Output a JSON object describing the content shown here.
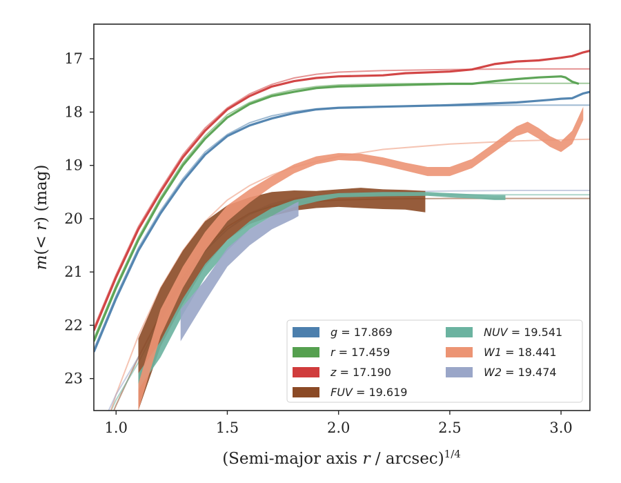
{
  "chart_data": {
    "type": "line",
    "xlabel": "(Semi-major axis r / arcsec)^1/4",
    "ylabel": "m(< r) (mag)",
    "xlim": [
      0.9,
      3.13
    ],
    "ylim": [
      23.6,
      16.35
    ],
    "inverted_y": true,
    "x_ticks": [
      1.0,
      1.5,
      2.0,
      2.5,
      3.0
    ],
    "x_tick_labels": [
      "1.0",
      "1.5",
      "2.0",
      "2.5",
      "3.0"
    ],
    "y_ticks": [
      17,
      18,
      19,
      20,
      21,
      22,
      23
    ],
    "y_tick_labels": [
      "17",
      "18",
      "19",
      "20",
      "21",
      "22",
      "23"
    ],
    "legend_position": "lower-right",
    "series": [
      {
        "name": "g = 17.869",
        "band": "g",
        "magnitude": 17.869,
        "color": "#4c7fad",
        "kind": "line",
        "x": [
          0.9,
          1.0,
          1.1,
          1.2,
          1.3,
          1.4,
          1.5,
          1.6,
          1.7,
          1.8,
          1.9,
          2.0,
          2.2,
          2.5,
          2.8,
          2.95,
          3.0,
          3.05,
          3.1,
          3.13
        ],
        "y": [
          22.5,
          21.5,
          20.6,
          19.9,
          19.3,
          18.8,
          18.45,
          18.25,
          18.12,
          18.02,
          17.95,
          17.92,
          17.9,
          17.87,
          17.82,
          17.77,
          17.75,
          17.74,
          17.65,
          17.62
        ],
        "model_x": [
          0.9,
          1.0,
          1.1,
          1.2,
          1.3,
          1.4,
          1.5,
          1.6,
          1.7,
          1.8,
          1.9,
          2.0,
          2.2,
          2.5,
          2.8,
          3.13
        ],
        "model_y": [
          22.45,
          21.45,
          20.55,
          19.85,
          19.25,
          18.75,
          18.42,
          18.2,
          18.07,
          17.99,
          17.94,
          17.91,
          17.89,
          17.88,
          17.87,
          17.87
        ]
      },
      {
        "name": "r = 17.459",
        "band": "r",
        "magnitude": 17.459,
        "color": "#55a04f",
        "kind": "line",
        "x": [
          0.9,
          1.0,
          1.1,
          1.2,
          1.3,
          1.4,
          1.5,
          1.6,
          1.7,
          1.8,
          1.9,
          2.0,
          2.2,
          2.5,
          2.6,
          2.7,
          2.8,
          2.9,
          3.0,
          3.02,
          3.05,
          3.08
        ],
        "y": [
          22.3,
          21.3,
          20.4,
          19.65,
          19.0,
          18.5,
          18.1,
          17.85,
          17.7,
          17.62,
          17.55,
          17.52,
          17.5,
          17.47,
          17.47,
          17.42,
          17.38,
          17.35,
          17.33,
          17.35,
          17.43,
          17.47
        ],
        "model_x": [
          0.9,
          1.0,
          1.1,
          1.2,
          1.3,
          1.4,
          1.5,
          1.6,
          1.7,
          1.8,
          1.9,
          2.0,
          2.2,
          2.5,
          2.8,
          3.13
        ],
        "model_y": [
          22.25,
          21.25,
          20.35,
          19.6,
          18.95,
          18.45,
          18.05,
          17.82,
          17.67,
          17.58,
          17.52,
          17.49,
          17.47,
          17.46,
          17.46,
          17.46
        ]
      },
      {
        "name": "z = 17.190",
        "band": "z",
        "magnitude": 17.19,
        "color": "#d03c3c",
        "kind": "line",
        "x": [
          0.9,
          1.0,
          1.1,
          1.2,
          1.3,
          1.4,
          1.5,
          1.6,
          1.7,
          1.8,
          1.9,
          2.0,
          2.2,
          2.3,
          2.5,
          2.6,
          2.7,
          2.8,
          2.9,
          3.0,
          3.05,
          3.1,
          3.13
        ],
        "y": [
          22.1,
          21.1,
          20.2,
          19.5,
          18.85,
          18.35,
          17.95,
          17.7,
          17.52,
          17.42,
          17.36,
          17.33,
          17.31,
          17.27,
          17.24,
          17.2,
          17.1,
          17.05,
          17.03,
          16.98,
          16.95,
          16.88,
          16.85
        ],
        "model_x": [
          0.9,
          1.0,
          1.1,
          1.2,
          1.3,
          1.4,
          1.5,
          1.6,
          1.7,
          1.8,
          1.9,
          2.0,
          2.2,
          2.5,
          2.8,
          3.13
        ],
        "model_y": [
          22.05,
          21.05,
          20.15,
          19.45,
          18.8,
          18.3,
          17.92,
          17.66,
          17.48,
          17.36,
          17.29,
          17.25,
          17.22,
          17.2,
          17.19,
          17.19
        ]
      },
      {
        "name": "FUV = 19.619",
        "band": "FUV",
        "magnitude": 19.619,
        "color": "#8b4a26",
        "kind": "band",
        "x": [
          1.1,
          1.2,
          1.3,
          1.4,
          1.5,
          1.6,
          1.7,
          1.8,
          1.9,
          2.0,
          2.1,
          2.2,
          2.3,
          2.39
        ],
        "y_low": [
          23.6,
          22.4,
          21.6,
          20.9,
          20.4,
          20.1,
          19.95,
          19.85,
          19.8,
          19.78,
          19.8,
          19.82,
          19.83,
          19.88
        ],
        "y_high": [
          22.25,
          21.3,
          20.6,
          20.05,
          19.75,
          19.6,
          19.5,
          19.47,
          19.48,
          19.45,
          19.42,
          19.45,
          19.46,
          19.48
        ],
        "model_x": [
          0.9,
          1.0,
          1.1,
          1.2,
          1.3,
          1.4,
          1.5,
          1.6,
          1.7,
          1.8,
          2.0,
          2.2,
          2.5,
          2.8,
          3.13
        ],
        "model_y": [
          24.5,
          23.5,
          22.6,
          21.8,
          21.1,
          20.55,
          20.15,
          19.9,
          19.77,
          19.7,
          19.65,
          19.63,
          19.62,
          19.62,
          19.62
        ]
      },
      {
        "name": "NUV = 19.541",
        "band": "NUV",
        "magnitude": 19.541,
        "color": "#6bb3a0",
        "kind": "band",
        "x": [
          1.1,
          1.2,
          1.3,
          1.4,
          1.5,
          1.6,
          1.7,
          1.8,
          1.9,
          2.0,
          2.2,
          2.4,
          2.5,
          2.6,
          2.7,
          2.75
        ],
        "y_low": [
          23.2,
          22.6,
          21.8,
          21.1,
          20.6,
          20.2,
          19.95,
          19.78,
          19.68,
          19.6,
          19.58,
          19.57,
          19.6,
          19.62,
          19.65,
          19.65
        ],
        "y_high": [
          22.9,
          22.3,
          21.5,
          20.85,
          20.4,
          20.05,
          19.8,
          19.65,
          19.57,
          19.52,
          19.5,
          19.5,
          19.52,
          19.54,
          19.56,
          19.56
        ],
        "model_x": [
          0.9,
          1.0,
          1.1,
          1.2,
          1.3,
          1.4,
          1.5,
          1.6,
          1.7,
          1.8,
          2.0,
          2.2,
          2.5,
          2.8,
          3.13
        ],
        "model_y": [
          24.3,
          23.4,
          22.7,
          21.9,
          21.2,
          20.6,
          20.2,
          19.92,
          19.75,
          19.65,
          19.58,
          19.56,
          19.55,
          19.55,
          19.55
        ]
      },
      {
        "name": "W1 = 18.441",
        "band": "W1",
        "magnitude": 18.441,
        "color": "#ec9474",
        "kind": "band",
        "x": [
          1.1,
          1.2,
          1.3,
          1.4,
          1.5,
          1.6,
          1.7,
          1.8,
          1.9,
          2.0,
          2.1,
          2.2,
          2.3,
          2.4,
          2.5,
          2.6,
          2.7,
          2.8,
          2.85,
          2.9,
          2.95,
          3.0,
          3.05,
          3.1
        ],
        "y_low": [
          23.6,
          22.2,
          21.3,
          20.6,
          20.05,
          19.7,
          19.4,
          19.15,
          18.98,
          18.9,
          18.92,
          19.0,
          19.1,
          19.2,
          19.2,
          19.05,
          18.75,
          18.45,
          18.38,
          18.5,
          18.65,
          18.75,
          18.6,
          18.15
        ],
        "y_high": [
          23.1,
          21.7,
          20.9,
          20.25,
          19.75,
          19.45,
          19.2,
          18.98,
          18.83,
          18.77,
          18.78,
          18.85,
          18.95,
          19.03,
          19.03,
          18.88,
          18.58,
          18.27,
          18.18,
          18.3,
          18.45,
          18.55,
          18.35,
          17.9
        ],
        "model_x": [
          0.9,
          1.0,
          1.1,
          1.2,
          1.3,
          1.4,
          1.5,
          1.6,
          1.7,
          1.8,
          2.0,
          2.2,
          2.5,
          2.8,
          3.13
        ],
        "model_y": [
          24.6,
          23.3,
          22.2,
          21.3,
          20.6,
          20.05,
          19.65,
          19.38,
          19.18,
          19.03,
          18.83,
          18.7,
          18.6,
          18.54,
          18.51
        ]
      },
      {
        "name": "W2 = 19.474",
        "band": "W2",
        "magnitude": 19.474,
        "color": "#9aa6c8",
        "kind": "band",
        "x": [
          1.29,
          1.4,
          1.5,
          1.6,
          1.7,
          1.8,
          1.82
        ],
        "y_low": [
          22.3,
          21.55,
          20.9,
          20.5,
          20.2,
          20.0,
          19.95
        ],
        "y_high": [
          21.7,
          21.15,
          20.55,
          20.2,
          19.95,
          19.72,
          19.68
        ],
        "model_x": [
          0.9,
          1.0,
          1.1,
          1.2,
          1.3,
          1.4,
          1.5,
          1.6,
          1.7,
          1.8,
          2.0,
          2.2,
          2.5,
          2.8,
          3.13
        ],
        "model_y": [
          24.2,
          23.3,
          22.6,
          21.85,
          21.15,
          20.6,
          20.2,
          19.9,
          19.72,
          19.62,
          19.53,
          19.5,
          19.48,
          19.47,
          19.47
        ]
      }
    ],
    "legend": [
      {
        "name": "g = 17.869",
        "math": "g",
        "value": "17.869",
        "color": "#4c7fad"
      },
      {
        "name": "r = 17.459",
        "math": "r",
        "value": "17.459",
        "color": "#55a04f"
      },
      {
        "name": "z = 17.190",
        "math": "z",
        "value": "17.190",
        "color": "#d03c3c"
      },
      {
        "name": "FUV = 19.619",
        "math": "FUV",
        "value": "19.619",
        "color": "#8b4a26"
      },
      {
        "name": "NUV = 19.541",
        "math": "NUV",
        "value": "19.541",
        "color": "#6bb3a0"
      },
      {
        "name": "W1 = 18.441",
        "math": "W1",
        "value": "18.441",
        "color": "#ec9474"
      },
      {
        "name": "W2 = 19.474",
        "math": "W2",
        "value": "19.474",
        "color": "#9aa6c8"
      }
    ]
  }
}
